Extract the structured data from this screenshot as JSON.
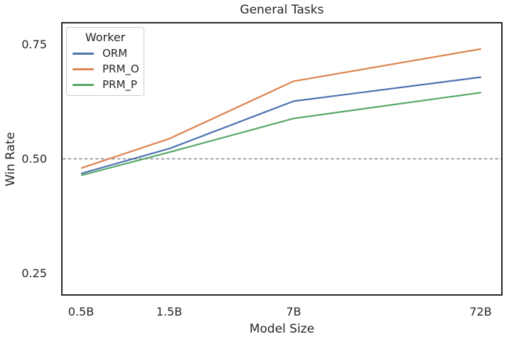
{
  "chart_data": {
    "type": "line",
    "title": "General Tasks",
    "xlabel": "Model Size",
    "ylabel": "Win Rate",
    "x_scale": "log",
    "x": [
      0.5,
      1.5,
      7,
      72
    ],
    "x_tick_labels": [
      "0.5B",
      "1.5B",
      "7B",
      "72B"
    ],
    "xlim": [
      0.39,
      94
    ],
    "ylim": [
      0.2,
      0.8
    ],
    "yticks": [
      0.25,
      0.5,
      0.75
    ],
    "ytick_labels": [
      "0.25",
      "0.50",
      "0.75"
    ],
    "grid": false,
    "axes_color": "#262626",
    "background": "#ffffff",
    "reference_line": {
      "y": 0.5,
      "style": "dashed",
      "color": "#888888"
    },
    "legend": {
      "title": "Worker",
      "position": "upper-left"
    },
    "series": [
      {
        "name": "ORM",
        "color": "#4C72B0",
        "values": [
          0.468,
          0.523,
          0.627,
          0.68
        ]
      },
      {
        "name": "PRM_O",
        "color": "#DD8452",
        "values": [
          0.48,
          0.545,
          0.671,
          0.742
        ]
      },
      {
        "name": "PRM_P",
        "color": "#55A868",
        "values": [
          0.464,
          0.515,
          0.589,
          0.646
        ]
      }
    ]
  }
}
